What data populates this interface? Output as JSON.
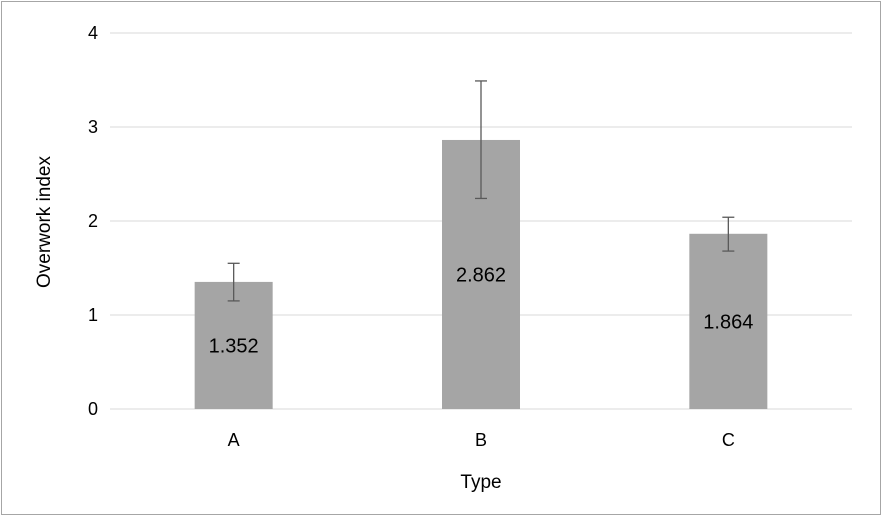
{
  "chart_data": {
    "type": "bar",
    "categories": [
      "A",
      "B",
      "C"
    ],
    "values": [
      1.352,
      2.862,
      1.864
    ],
    "data_labels": [
      "1.352",
      "2.862",
      "1.864"
    ],
    "error_bars": [
      {
        "low": 1.15,
        "high": 1.55
      },
      {
        "low": 2.24,
        "high": 3.49
      },
      {
        "low": 1.68,
        "high": 2.04
      }
    ],
    "xlabel": "Type",
    "ylabel": "Overwork index",
    "ylim": [
      0,
      4
    ],
    "yticks": [
      "0",
      "1",
      "2",
      "3",
      "4"
    ],
    "grid": true,
    "legend": "none",
    "colors": {
      "bar": "#a5a5a5",
      "grid": "#d9d9d9",
      "errorbar": "#595959",
      "border": "#a6a6a6"
    }
  }
}
